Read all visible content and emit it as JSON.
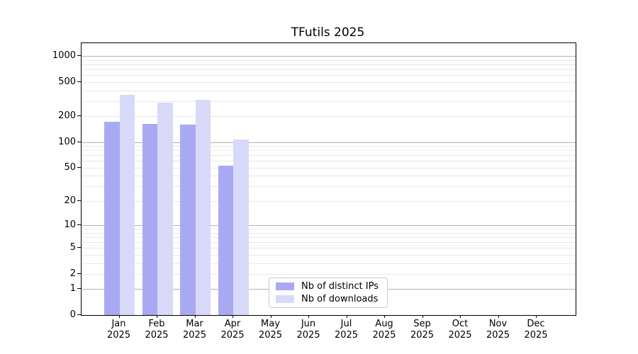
{
  "chart_data": {
    "type": "bar",
    "title": "TFutils 2025",
    "x_tick_year": "2025",
    "categories": [
      "Jan",
      "Feb",
      "Mar",
      "Apr",
      "May",
      "Jun",
      "Jul",
      "Aug",
      "Sep",
      "Oct",
      "Nov",
      "Dec"
    ],
    "y_ticks": [
      0,
      1,
      2,
      5,
      10,
      20,
      50,
      100,
      200,
      500,
      1000
    ],
    "y_scale": "log1p",
    "ylim": [
      0,
      1412
    ],
    "grid": {
      "enabled": true,
      "major_values": [
        1,
        10,
        100,
        1000
      ],
      "minor_values": [
        2,
        3,
        4,
        5,
        6,
        7,
        8,
        9,
        20,
        30,
        40,
        50,
        60,
        70,
        80,
        90,
        200,
        300,
        400,
        500,
        600,
        700,
        800,
        900
      ],
      "major_color": "#b3b3b3",
      "minor_color": "#e8e8e8"
    },
    "series": [
      {
        "name": "Nb of distinct IPs",
        "color": "#a9a9f3",
        "values": [
          172,
          164,
          159,
          53,
          null,
          null,
          null,
          null,
          null,
          null,
          null,
          null
        ]
      },
      {
        "name": "Nb of downloads",
        "color": "#d9d9f9",
        "values": [
          355,
          290,
          309,
          108,
          null,
          null,
          null,
          null,
          null,
          null,
          null,
          null
        ]
      }
    ],
    "legend": {
      "position": "lower-center",
      "entries": [
        "Nb of distinct IPs",
        "Nb of downloads"
      ]
    }
  }
}
